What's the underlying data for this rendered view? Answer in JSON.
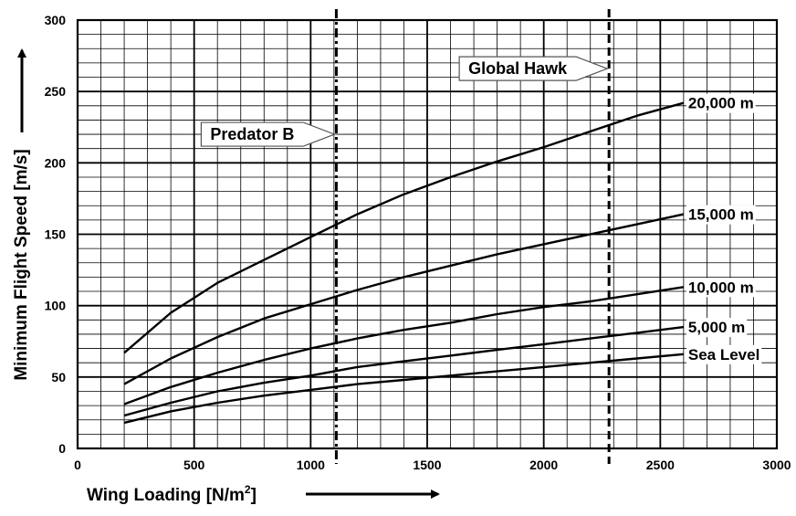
{
  "chart_data": {
    "type": "line",
    "xlabel": "Wing Loading [N/m",
    "xlabel_sup": "2",
    "xlabel_close": "]",
    "ylabel": "Minimum Flight Speed [m/s]",
    "xlim": [
      0,
      3000
    ],
    "ylim": [
      0,
      300
    ],
    "x_ticks": [
      0,
      500,
      1000,
      1500,
      2000,
      2500,
      3000
    ],
    "y_ticks": [
      0,
      50,
      100,
      150,
      200,
      250,
      300
    ],
    "x_minor_step": 100,
    "y_minor_step": 10,
    "grid": true,
    "series": [
      {
        "name": "20,000 m",
        "x": [
          200,
          400,
          600,
          800,
          1000,
          1200,
          1400,
          1600,
          1800,
          2000,
          2200,
          2400,
          2600
        ],
        "y": [
          67,
          95,
          116,
          132,
          148,
          164,
          178,
          190,
          201,
          211,
          222,
          233,
          242
        ]
      },
      {
        "name": "15,000 m",
        "x": [
          200,
          400,
          600,
          800,
          1000,
          1200,
          1400,
          1600,
          1800,
          2000,
          2200,
          2400,
          2600
        ],
        "y": [
          45,
          63,
          78,
          91,
          101,
          111,
          120,
          128,
          136,
          143,
          150,
          157,
          164
        ]
      },
      {
        "name": "10,000 m",
        "x": [
          200,
          400,
          600,
          800,
          1000,
          1200,
          1400,
          1600,
          1800,
          2000,
          2200,
          2400,
          2600
        ],
        "y": [
          31,
          43,
          53,
          62,
          70,
          77,
          83,
          88,
          94,
          99,
          103,
          108,
          113
        ]
      },
      {
        "name": "5,000 m",
        "x": [
          200,
          400,
          600,
          800,
          1000,
          1200,
          1400,
          1600,
          1800,
          2000,
          2200,
          2400,
          2600
        ],
        "y": [
          23,
          32,
          40,
          46,
          51,
          57,
          61,
          65,
          69,
          73,
          77,
          81,
          85
        ]
      },
      {
        "name": "Sea Level",
        "x": [
          200,
          400,
          600,
          800,
          1000,
          1200,
          1400,
          1600,
          1800,
          2000,
          2200,
          2400,
          2600
        ],
        "y": [
          18,
          26,
          32,
          37,
          41,
          45,
          48,
          51,
          54,
          57,
          60,
          63,
          66
        ]
      }
    ],
    "reference_lines": [
      {
        "name": "Predator B",
        "x": 1110,
        "style": "dash-dot",
        "label_y": 220
      },
      {
        "name": "Global Hawk",
        "x": 2280,
        "style": "dashed",
        "label_y": 266
      }
    ]
  }
}
